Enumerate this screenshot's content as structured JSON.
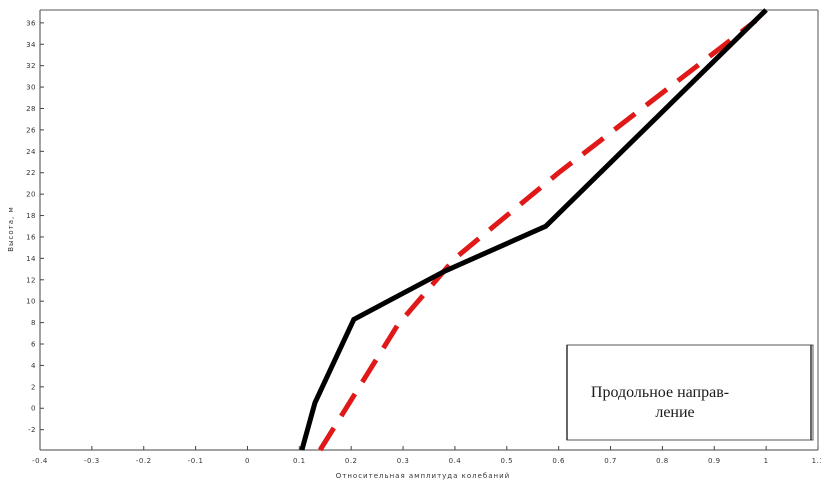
{
  "chart_data": {
    "type": "line",
    "title": "",
    "xlabel": "Относительная амплитуда колебаний",
    "ylabel": "Высота, м",
    "xlim": [
      -0.4,
      1.1
    ],
    "ylim": [
      -3.9,
      37.2
    ],
    "x_ticks": [
      "-0.4",
      "-0.3",
      "-0.2",
      "-0.1",
      "0",
      "0.1",
      "0.2",
      "0.3",
      "0.4",
      "0.5",
      "0.6",
      "0.7",
      "0.8",
      "0.9",
      "1",
      "1.1"
    ],
    "x_tick_values": [
      -0.4,
      -0.3,
      -0.2,
      -0.1,
      0,
      0.1,
      0.2,
      0.3,
      0.4,
      0.5,
      0.6,
      0.7,
      0.8,
      0.9,
      1.0,
      1.1
    ],
    "y_ticks": [
      "-2",
      "0",
      "2",
      "4",
      "6",
      "8",
      "10",
      "12",
      "14",
      "16",
      "18",
      "20",
      "22",
      "24",
      "26",
      "28",
      "30",
      "32",
      "34",
      "36"
    ],
    "y_tick_values": [
      -2,
      0,
      2,
      4,
      6,
      8,
      10,
      12,
      14,
      16,
      18,
      20,
      22,
      24,
      26,
      28,
      30,
      32,
      34,
      36
    ],
    "grid": false,
    "series": [
      {
        "color": "#000000",
        "style": "solid",
        "x": [
          0.105,
          0.13,
          0.205,
          0.38,
          0.575,
          1.0
        ],
        "y": [
          -3.9,
          0.5,
          8.3,
          12.8,
          17.0,
          37.2
        ]
      },
      {
        "color": "#e01818",
        "style": "dashed",
        "x": [
          0.14,
          0.29,
          0.4,
          0.6,
          0.98
        ],
        "y": [
          -3.9,
          7.8,
          14.0,
          22.0,
          36.2
        ]
      }
    ],
    "legend": {
      "location": "bottom-right",
      "lines": [
        "Продольное направ-",
        "ление"
      ]
    }
  }
}
